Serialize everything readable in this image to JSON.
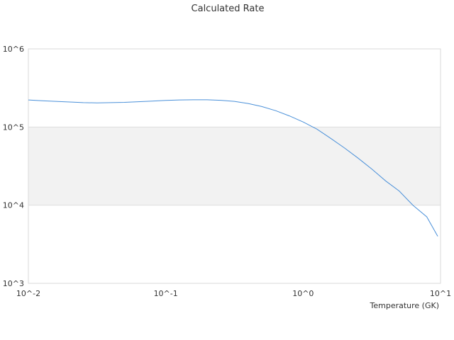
{
  "chart_data": {
    "type": "line",
    "title": "Calculated Rate",
    "xlabel": "Temperature (GK)",
    "ylabel": "",
    "x_scale": "log",
    "y_scale": "log",
    "xlim": [
      0.01,
      10
    ],
    "ylim": [
      1000,
      1000000
    ],
    "x_tick_labels": [
      {
        "value": 0.01,
        "label": "10^-2"
      },
      {
        "value": 0.1,
        "label": "10^-1"
      },
      {
        "value": 1,
        "label": "10^0"
      },
      {
        "value": 10,
        "label": "10^1"
      }
    ],
    "y_tick_labels": [
      {
        "value": 1000,
        "label": "10^3"
      },
      {
        "value": 10000,
        "label": "10^4"
      },
      {
        "value": 100000,
        "label": "10^5"
      },
      {
        "value": 1000000,
        "label": "10^6"
      }
    ],
    "grid": "horizontal",
    "alternate_band_color": "#f2f2f2",
    "grid_color": "#dddddd",
    "line_color": "#4a90d9",
    "series": [
      {
        "x": [
          0.01,
          0.0126,
          0.0158,
          0.02,
          0.0251,
          0.0316,
          0.0398,
          0.05,
          0.063,
          0.0794,
          0.1,
          0.126,
          0.158,
          0.2,
          0.251,
          0.316,
          0.398,
          0.5,
          0.63,
          0.794,
          1,
          1.26,
          1.58,
          2,
          2.51,
          3.16,
          3.98,
          5,
          6.3,
          7.94,
          9.55
        ],
        "y": [
          222000,
          217000,
          213000,
          209000,
          205000,
          204000,
          205000,
          207000,
          211000,
          215000,
          219000,
          222000,
          223000,
          223000,
          220000,
          213000,
          200000,
          183000,
          162000,
          139000,
          116000,
          94000,
          72000,
          54000,
          40000,
          29000,
          20500,
          15200,
          10000,
          7100,
          4000
        ]
      }
    ]
  }
}
